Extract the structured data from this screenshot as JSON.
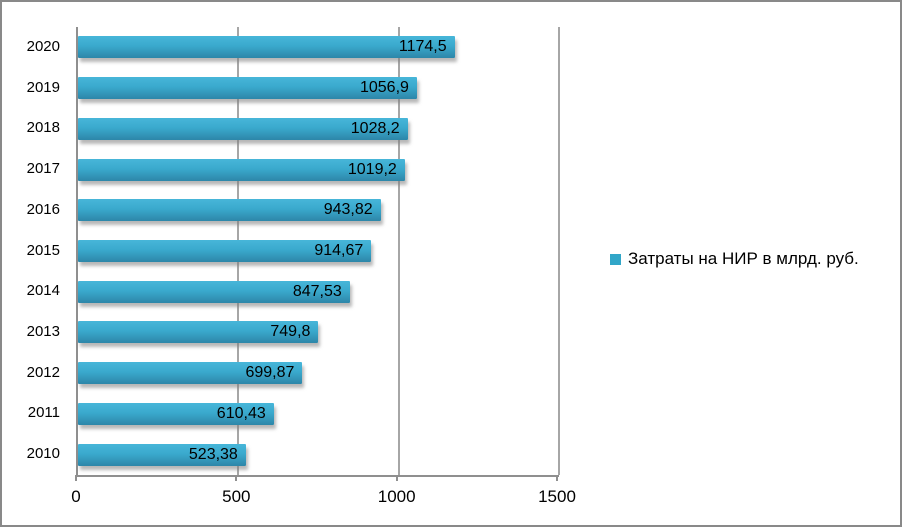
{
  "colors": {
    "bar_top": "#47b6d9",
    "bar_mid": "#3aa9cd",
    "bar_bottom": "#2d86a8",
    "legend_marker": "#31a6c8",
    "gridline": "#a6a6a6",
    "axis": "#8f8f8f",
    "text": "#000000",
    "frame_border": "#898989"
  },
  "chart_data": {
    "type": "bar",
    "orientation": "horizontal",
    "title": "",
    "categories": [
      "2020",
      "2019",
      "2018",
      "2017",
      "2016",
      "2015",
      "2014",
      "2013",
      "2012",
      "2011",
      "2010"
    ],
    "values": [
      1174.5,
      1056.9,
      1028.2,
      1019.2,
      943.82,
      914.67,
      847.53,
      749.8,
      699.87,
      610.43,
      523.38
    ],
    "value_labels": [
      "1174,5",
      "1056,9",
      "1028,2",
      "1019,2",
      "943,82",
      "914,67",
      "847,53",
      "749,8",
      "699,87",
      "610,43",
      "523,38"
    ],
    "legend": "Затраты на НИР в млрд. руб.",
    "legend_position": "right",
    "xlim": [
      0,
      1500
    ],
    "x_ticks": [
      0,
      500,
      1000,
      1500
    ],
    "x_tick_labels": [
      "0",
      "500",
      "1000",
      "1500"
    ],
    "grid": true,
    "value_label_position": "inside-end"
  }
}
